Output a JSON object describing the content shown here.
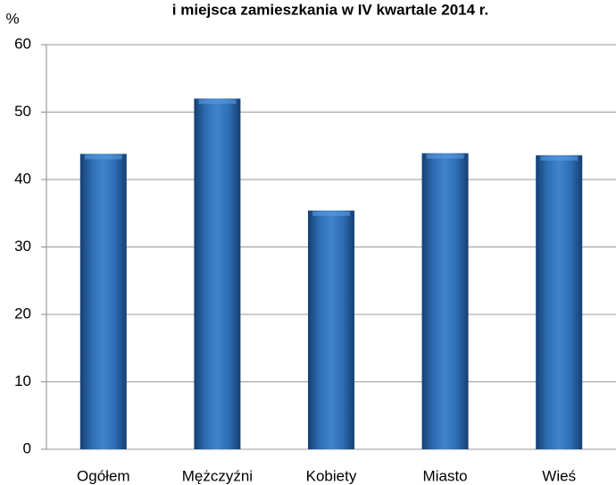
{
  "chart_data": {
    "type": "bar",
    "title": "i miejsca zamieszkania w IV kwartale 2014 r.",
    "y_label": "%",
    "categories": [
      "Ogółem",
      "Mężczyźni",
      "Kobiety",
      "Miasto",
      "Wieś"
    ],
    "values": [
      43.8,
      52.0,
      35.4,
      43.9,
      43.6
    ],
    "color": "#2e6db4",
    "ylim": [
      0,
      60
    ],
    "yticks": [
      0,
      10,
      20,
      30,
      40,
      50,
      60
    ],
    "grid": true
  }
}
